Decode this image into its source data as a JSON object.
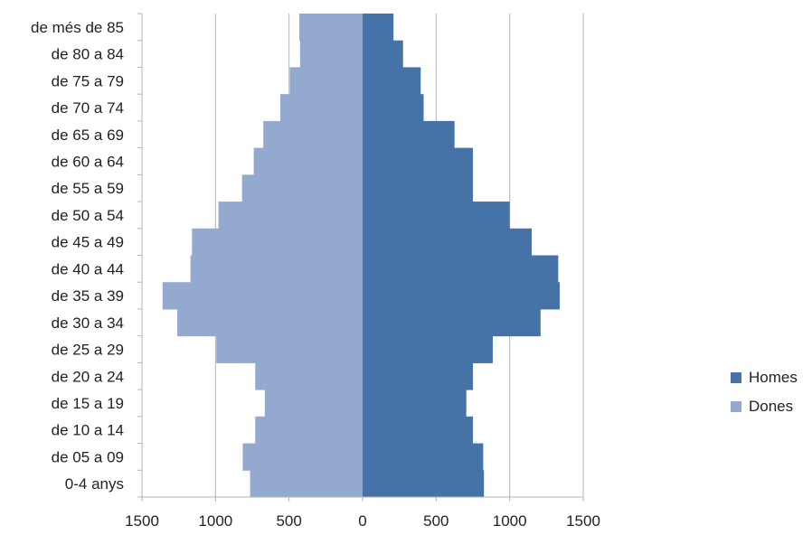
{
  "chart_data": {
    "type": "bar",
    "orientation": "horizontal-population-pyramid",
    "categories": [
      "de més de 85",
      "de 80 a 84",
      "de 75 a 79",
      "de 70 a 74",
      "de 65 a 69",
      "de 60 a 64",
      "de 55 a 59",
      "de 50 a 54",
      "de 45 a 49",
      "de 40 a 44",
      "de 35 a 39",
      "de 30 a 34",
      "de 25 a 29",
      "de 20 a 24",
      "de 15 a 19",
      "de 10 a 14",
      "de 05 a 09",
      "0-4 anys"
    ],
    "series": [
      {
        "name": "Homes",
        "color": "#4572a7",
        "side": "right",
        "values": [
          210,
          275,
          395,
          415,
          625,
          750,
          750,
          1000,
          1150,
          1330,
          1340,
          1210,
          885,
          750,
          705,
          750,
          820,
          825
        ]
      },
      {
        "name": "Dones",
        "color": "#93a9cf",
        "side": "left",
        "values": [
          430,
          425,
          495,
          560,
          675,
          740,
          820,
          980,
          1160,
          1170,
          1360,
          1260,
          995,
          730,
          665,
          730,
          815,
          765
        ]
      }
    ],
    "x_ticks": [
      "1500",
      "1000",
      "500",
      "0",
      "500",
      "1000",
      "1500"
    ],
    "xlim": [
      -1500,
      1500
    ],
    "grid": "vertical",
    "legend": "right",
    "title": "",
    "xlabel": "",
    "ylabel": ""
  }
}
